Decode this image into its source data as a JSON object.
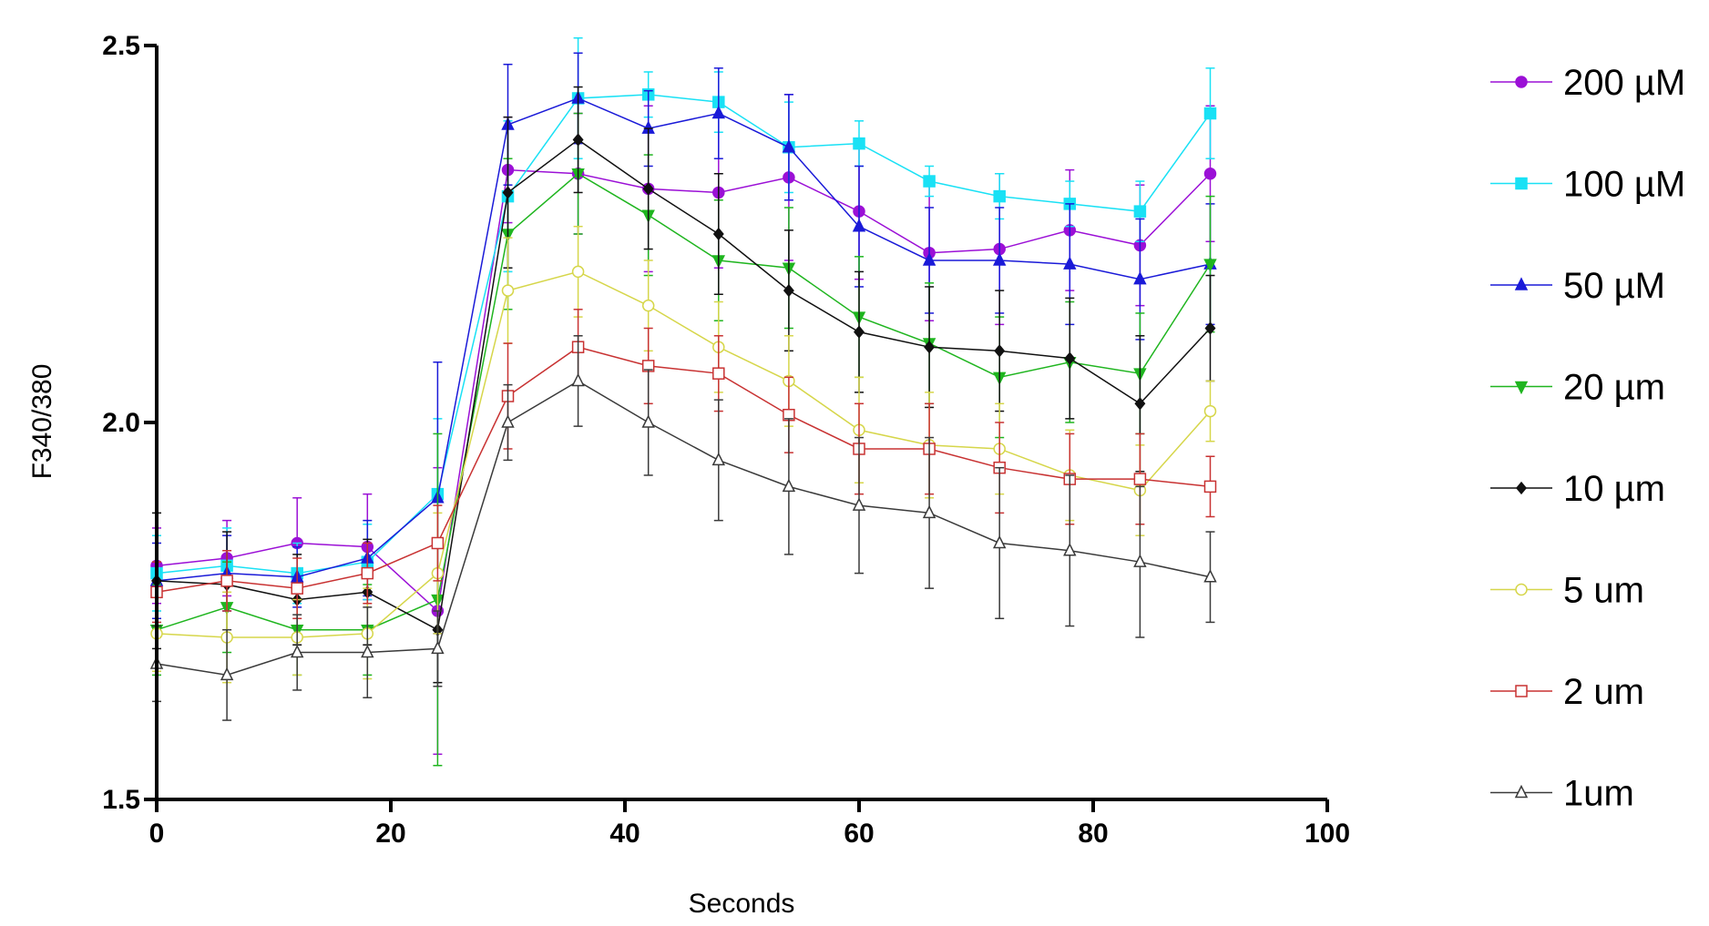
{
  "chart_data": {
    "type": "line",
    "title": "",
    "xlabel": "Seconds",
    "ylabel": "F340/380",
    "xlim": [
      0,
      100
    ],
    "ylim": [
      1.5,
      2.5
    ],
    "xticks": [
      "0",
      "20",
      "40",
      "60",
      "80",
      "100"
    ],
    "yticks": [
      "1.5",
      "2.0",
      "2.5"
    ],
    "x": [
      0,
      6,
      12,
      18,
      24,
      30,
      36,
      42,
      48,
      54,
      60,
      66,
      72,
      78,
      84,
      90
    ],
    "legend_position": "right",
    "series": [
      {
        "name": "200 µM",
        "color": "#9b10d6",
        "marker": "circle-filled",
        "values": [
          1.81,
          1.82,
          1.84,
          1.835,
          1.75,
          2.335,
          2.33,
          2.31,
          2.305,
          2.325,
          2.28,
          2.225,
          2.23,
          2.255,
          2.235,
          2.33
        ],
        "errors": [
          0.05,
          0.05,
          0.06,
          0.07,
          0.19,
          0.07,
          0.08,
          0.11,
          0.1,
          0.11,
          0.09,
          0.09,
          0.1,
          0.08,
          0.08,
          0.09
        ]
      },
      {
        "name": "100 µM",
        "color": "#19e1f5",
        "marker": "square-filled",
        "values": [
          1.8,
          1.81,
          1.8,
          1.815,
          1.905,
          2.3,
          2.43,
          2.435,
          2.425,
          2.365,
          2.37,
          2.32,
          2.3,
          2.29,
          2.28,
          2.41
        ],
        "errors": [
          0.05,
          0.05,
          0.04,
          0.05,
          0.1,
          0.1,
          0.08,
          0.03,
          0.04,
          0.06,
          0.03,
          0.02,
          0.03,
          0.03,
          0.04,
          0.06
        ]
      },
      {
        "name": "50 µM",
        "color": "#1a1ad8",
        "marker": "triangle-up-filled",
        "values": [
          1.79,
          1.8,
          1.795,
          1.82,
          1.9,
          2.395,
          2.43,
          2.39,
          2.41,
          2.365,
          2.26,
          2.215,
          2.215,
          2.21,
          2.19,
          2.21
        ],
        "errors": [
          0.05,
          0.05,
          0.04,
          0.05,
          0.18,
          0.08,
          0.06,
          0.05,
          0.06,
          0.07,
          0.08,
          0.07,
          0.07,
          0.08,
          0.08,
          0.08
        ]
      },
      {
        "name": "20 µm",
        "color": "#1fb51f",
        "marker": "triangle-down-filled",
        "values": [
          1.725,
          1.755,
          1.725,
          1.725,
          1.765,
          2.25,
          2.33,
          2.275,
          2.215,
          2.205,
          2.14,
          2.105,
          2.06,
          2.08,
          2.065,
          2.21
        ],
        "errors": [
          0.06,
          0.06,
          0.06,
          0.06,
          0.22,
          0.1,
          0.08,
          0.08,
          0.08,
          0.08,
          0.08,
          0.08,
          0.08,
          0.08,
          0.08,
          0.09
        ]
      },
      {
        "name": "10 µm",
        "color": "#111111",
        "marker": "diamond-filled",
        "values": [
          1.79,
          1.785,
          1.765,
          1.775,
          1.725,
          2.305,
          2.375,
          2.31,
          2.25,
          2.175,
          2.12,
          2.1,
          2.095,
          2.085,
          2.025,
          2.125
        ],
        "errors": [
          0.09,
          0.07,
          0.06,
          0.07,
          0.07,
          0.1,
          0.07,
          0.08,
          0.08,
          0.08,
          0.08,
          0.08,
          0.08,
          0.08,
          0.09,
          0.07
        ]
      },
      {
        "name": "5 um",
        "color": "#d6d64a",
        "marker": "circle-open",
        "values": [
          1.72,
          1.715,
          1.715,
          1.72,
          1.8,
          2.175,
          2.2,
          2.155,
          2.1,
          2.055,
          1.99,
          1.97,
          1.965,
          1.93,
          1.91,
          2.015
        ],
        "errors": [
          0.05,
          0.06,
          0.05,
          0.06,
          0.08,
          0.07,
          0.06,
          0.06,
          0.06,
          0.06,
          0.07,
          0.07,
          0.06,
          0.06,
          0.06,
          0.04
        ]
      },
      {
        "name": "2 um",
        "color": "#c83232",
        "marker": "square-open",
        "values": [
          1.775,
          1.79,
          1.78,
          1.8,
          1.84,
          2.035,
          2.1,
          2.075,
          2.065,
          2.01,
          1.965,
          1.965,
          1.94,
          1.925,
          1.925,
          1.915
        ],
        "errors": [
          0.04,
          0.04,
          0.04,
          0.04,
          0.05,
          0.07,
          0.05,
          0.05,
          0.05,
          0.05,
          0.06,
          0.06,
          0.06,
          0.06,
          0.06,
          0.04
        ]
      },
      {
        "name": "1um",
        "color": "#3a3a3a",
        "marker": "triangle-up-open",
        "values": [
          1.68,
          1.665,
          1.695,
          1.695,
          1.7,
          2.0,
          2.055,
          2.0,
          1.95,
          1.915,
          1.89,
          1.88,
          1.84,
          1.83,
          1.815,
          1.795
        ],
        "errors": [
          0.05,
          0.06,
          0.05,
          0.06,
          0.05,
          0.05,
          0.06,
          0.07,
          0.08,
          0.09,
          0.09,
          0.1,
          0.1,
          0.1,
          0.1,
          0.06
        ]
      }
    ]
  }
}
